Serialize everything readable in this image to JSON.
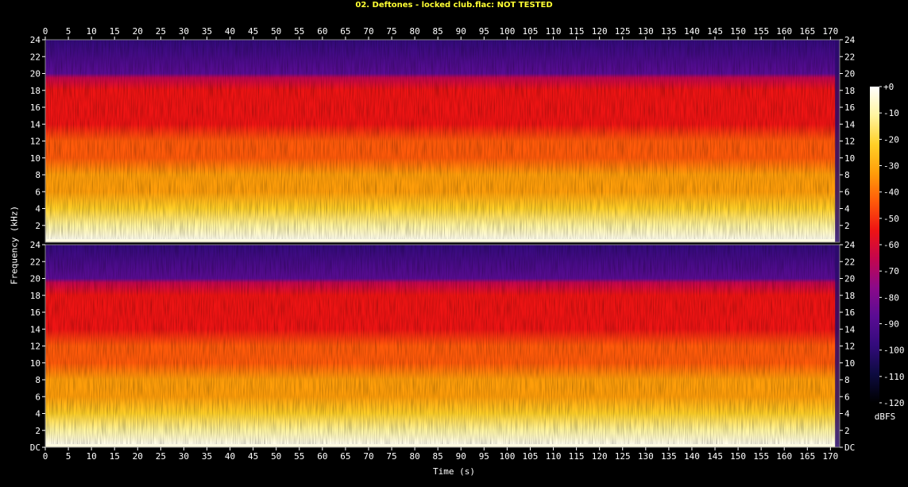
{
  "title": "02. Deftones - locked club.flac: NOT TESTED",
  "title_color": "#ffff33",
  "xlabel": "Time (s)",
  "ylabel": "Frequency (kHz)",
  "colorbar_units": "dBFS",
  "chart_data": {
    "type": "heatmap",
    "title": "02. Deftones - locked club.flac: NOT TESTED",
    "xlabel": "Time (s)",
    "ylabel": "Frequency (kHz)",
    "xlim": [
      0,
      172
    ],
    "ylim_khz": [
      0,
      24
    ],
    "x_ticks": [
      "0",
      "5",
      "10",
      "15",
      "20",
      "25",
      "30",
      "35",
      "40",
      "45",
      "50",
      "55",
      "60",
      "65",
      "70",
      "75",
      "80",
      "85",
      "90",
      "95",
      "100",
      "105",
      "110",
      "115",
      "120",
      "125",
      "130",
      "135",
      "140",
      "145",
      "150",
      "155",
      "160",
      "165",
      "170"
    ],
    "y_ticks_top": [
      "24",
      "22",
      "20",
      "18",
      "16",
      "14",
      "12",
      "10",
      "8",
      "6",
      "4",
      "2"
    ],
    "y_ticks_bottom": [
      "24",
      "22",
      "20",
      "18",
      "16",
      "14",
      "12",
      "10",
      "8",
      "6",
      "4",
      "2",
      "DC"
    ],
    "channels": [
      "left",
      "right"
    ],
    "colorbar": {
      "label": "dBFS",
      "ticks": [
        "+0",
        "-10",
        "-20",
        "-30",
        "-40",
        "-50",
        "-60",
        "-70",
        "-80",
        "-90",
        "-100",
        "-110",
        "-120"
      ],
      "range": [
        -120,
        0
      ],
      "colormap": [
        "#000000",
        "#0d0b40",
        "#330b7c",
        "#5a0c93",
        "#8b0a8a",
        "#c3064e",
        "#ee1414",
        "#ff5a0a",
        "#ff9e0a",
        "#ffd028",
        "#fff5a0",
        "#ffffff"
      ]
    },
    "spectral_profile_khz_db": [
      {
        "freq_khz": 0,
        "db": 0
      },
      {
        "freq_khz": 2,
        "db": -15
      },
      {
        "freq_khz": 4,
        "db": -25
      },
      {
        "freq_khz": 6,
        "db": -32
      },
      {
        "freq_khz": 8,
        "db": -38
      },
      {
        "freq_khz": 10,
        "db": -43
      },
      {
        "freq_khz": 12,
        "db": -47
      },
      {
        "freq_khz": 14,
        "db": -51
      },
      {
        "freq_khz": 16,
        "db": -54
      },
      {
        "freq_khz": 18,
        "db": -58
      },
      {
        "freq_khz": 19.5,
        "db": -64
      },
      {
        "freq_khz": 20,
        "db": -88
      },
      {
        "freq_khz": 24,
        "db": -95
      }
    ]
  }
}
